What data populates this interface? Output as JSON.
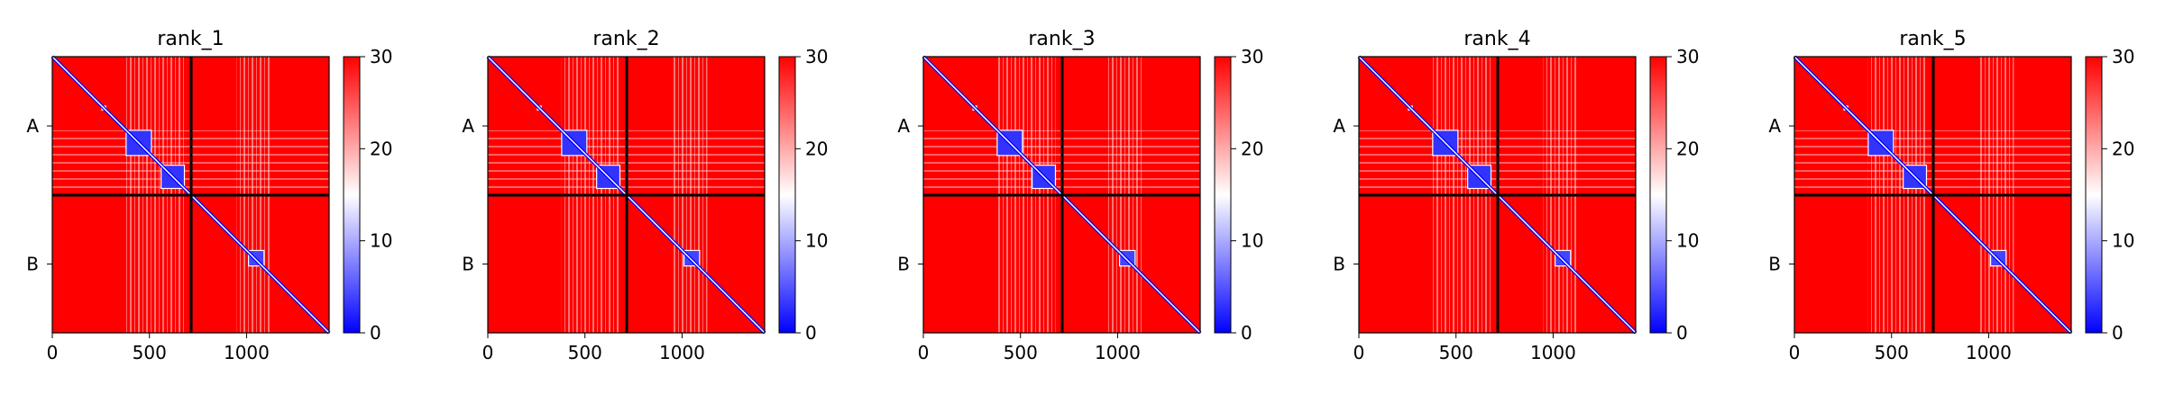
{
  "chart_data": [
    {
      "type": "heatmap",
      "title": "rank_1",
      "xlabel": "",
      "ylabel": "",
      "x_ticks": [
        0,
        500,
        1000
      ],
      "y_tick_labels": [
        "A",
        "B"
      ],
      "xlim": [
        0,
        1425
      ],
      "chain_boundary": 715,
      "colorbar": {
        "vmin": 0,
        "vmax": 30,
        "ticks": [
          0,
          10,
          20,
          30
        ],
        "colormap": "bwr"
      },
      "blocks": [
        {
          "x0": 255,
          "x1": 275,
          "y0": 255,
          "y1": 275,
          "value": 3
        },
        {
          "x0": 380,
          "x1": 510,
          "y0": 380,
          "y1": 510,
          "value": 3
        },
        {
          "x0": 560,
          "x1": 680,
          "y0": 560,
          "y1": 680,
          "value": 3
        },
        {
          "x0": 1010,
          "x1": 1090,
          "y0": 1000,
          "y1": 1080,
          "value": 4
        }
      ]
    },
    {
      "type": "heatmap",
      "title": "rank_2",
      "xlabel": "",
      "ylabel": "",
      "x_ticks": [
        0,
        500,
        1000
      ],
      "y_tick_labels": [
        "A",
        "B"
      ],
      "xlim": [
        0,
        1425
      ],
      "chain_boundary": 715,
      "colorbar": {
        "vmin": 0,
        "vmax": 30,
        "ticks": [
          0,
          10,
          20,
          30
        ],
        "colormap": "bwr"
      },
      "blocks": [
        {
          "x0": 255,
          "x1": 275,
          "y0": 255,
          "y1": 275,
          "value": 3
        },
        {
          "x0": 380,
          "x1": 510,
          "y0": 380,
          "y1": 510,
          "value": 3
        },
        {
          "x0": 560,
          "x1": 680,
          "y0": 560,
          "y1": 680,
          "value": 3
        },
        {
          "x0": 1010,
          "x1": 1090,
          "y0": 1000,
          "y1": 1080,
          "value": 4
        }
      ]
    },
    {
      "type": "heatmap",
      "title": "rank_3",
      "xlabel": "",
      "ylabel": "",
      "x_ticks": [
        0,
        500,
        1000
      ],
      "y_tick_labels": [
        "A",
        "B"
      ],
      "xlim": [
        0,
        1425
      ],
      "chain_boundary": 715,
      "colorbar": {
        "vmin": 0,
        "vmax": 30,
        "ticks": [
          0,
          10,
          20,
          30
        ],
        "colormap": "bwr"
      },
      "blocks": [
        {
          "x0": 255,
          "x1": 275,
          "y0": 255,
          "y1": 275,
          "value": 3
        },
        {
          "x0": 380,
          "x1": 510,
          "y0": 380,
          "y1": 510,
          "value": 3
        },
        {
          "x0": 560,
          "x1": 680,
          "y0": 560,
          "y1": 680,
          "value": 3
        },
        {
          "x0": 1010,
          "x1": 1090,
          "y0": 1000,
          "y1": 1080,
          "value": 4
        }
      ]
    },
    {
      "type": "heatmap",
      "title": "rank_4",
      "xlabel": "",
      "ylabel": "",
      "x_ticks": [
        0,
        500,
        1000
      ],
      "y_tick_labels": [
        "A",
        "B"
      ],
      "xlim": [
        0,
        1425
      ],
      "chain_boundary": 715,
      "colorbar": {
        "vmin": 0,
        "vmax": 30,
        "ticks": [
          0,
          10,
          20,
          30
        ],
        "colormap": "bwr"
      },
      "blocks": [
        {
          "x0": 255,
          "x1": 275,
          "y0": 255,
          "y1": 275,
          "value": 3
        },
        {
          "x0": 380,
          "x1": 510,
          "y0": 380,
          "y1": 510,
          "value": 3
        },
        {
          "x0": 560,
          "x1": 680,
          "y0": 560,
          "y1": 680,
          "value": 3
        },
        {
          "x0": 1010,
          "x1": 1090,
          "y0": 1000,
          "y1": 1080,
          "value": 4
        }
      ]
    },
    {
      "type": "heatmap",
      "title": "rank_5",
      "xlabel": "",
      "ylabel": "",
      "x_ticks": [
        0,
        500,
        1000
      ],
      "y_tick_labels": [
        "A",
        "B"
      ],
      "xlim": [
        0,
        1425
      ],
      "chain_boundary": 715,
      "colorbar": {
        "vmin": 0,
        "vmax": 30,
        "ticks": [
          0,
          10,
          20,
          30
        ],
        "colormap": "bwr"
      },
      "blocks": [
        {
          "x0": 255,
          "x1": 275,
          "y0": 255,
          "y1": 275,
          "value": 3
        },
        {
          "x0": 380,
          "x1": 510,
          "y0": 380,
          "y1": 510,
          "value": 3
        },
        {
          "x0": 560,
          "x1": 680,
          "y0": 560,
          "y1": 680,
          "value": 3
        },
        {
          "x0": 1010,
          "x1": 1090,
          "y0": 1000,
          "y1": 1080,
          "value": 4
        }
      ]
    }
  ],
  "colors": {
    "high": "#ff0000",
    "mid": "#ffffff",
    "low": "#0000ff",
    "diagonal": "#ffffff",
    "boundary_line": "#000000"
  }
}
